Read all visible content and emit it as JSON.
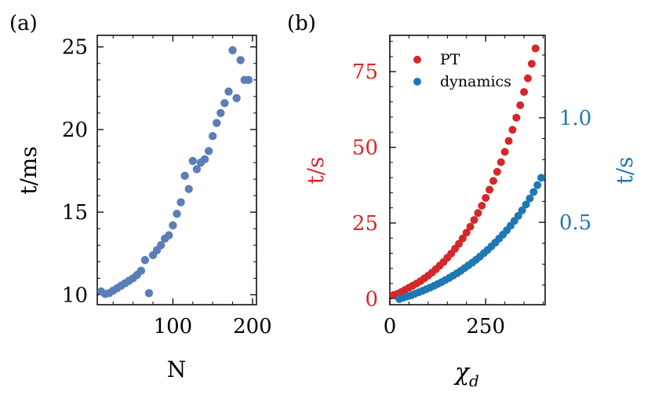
{
  "chart_data": [
    {
      "panel_label": "(a)",
      "type": "scatter",
      "xlabel": "N",
      "ylabel": "t/ms",
      "xlim": [
        5,
        205
      ],
      "ylim": [
        9.4,
        25.7
      ],
      "xticks": [
        100,
        200
      ],
      "yticks": [
        10,
        15,
        20,
        25
      ],
      "grid": false,
      "color": "#5B7DB8",
      "series": [
        {
          "x": [
            10,
            15,
            20,
            25,
            30,
            35,
            40,
            45,
            50,
            55,
            60,
            65,
            70,
            75,
            80,
            85,
            90,
            95,
            100,
            105,
            110,
            115,
            120,
            125,
            130,
            135,
            140,
            145,
            150,
            155,
            160,
            165,
            170,
            175,
            180,
            185,
            190,
            195
          ],
          "y": [
            10.2,
            10.05,
            10.1,
            10.25,
            10.4,
            10.55,
            10.7,
            10.85,
            11.0,
            11.2,
            11.45,
            12.1,
            10.1,
            12.4,
            12.7,
            13.0,
            13.4,
            13.6,
            14.2,
            14.9,
            15.6,
            17.2,
            16.4,
            18.1,
            17.6,
            18.0,
            18.2,
            18.7,
            19.6,
            20.4,
            21.0,
            21.6,
            22.3,
            24.8,
            21.9,
            24.2,
            23.0,
            23.0
          ]
        }
      ]
    },
    {
      "panel_label": "(b)",
      "type": "scatter",
      "xlabel": "χd",
      "ylabel_left": "t/s",
      "ylabel_right": "t/s",
      "xlim": [
        0,
        405
      ],
      "xticks": [
        0,
        250
      ],
      "ylim_left": [
        -2,
        87
      ],
      "yticks_left": [
        0,
        25,
        50,
        75
      ],
      "ylim_right": [
        0.106,
        1.394
      ],
      "yticks_right": [
        0.5,
        1.0
      ],
      "legend": "top-left",
      "grid": false,
      "series": [
        {
          "name": "PT",
          "axis": "left",
          "color": "#D62728",
          "x": [
            10,
            20,
            30,
            40,
            50,
            60,
            70,
            80,
            90,
            100,
            110,
            120,
            130,
            140,
            150,
            160,
            170,
            180,
            190,
            200,
            210,
            220,
            230,
            240,
            250,
            260,
            270,
            280,
            290,
            300,
            310,
            320,
            330,
            340,
            350,
            360,
            370,
            380
          ],
          "y": [
            1.2,
            1.6,
            2.2,
            2.9,
            3.6,
            4.3,
            5.0,
            5.8,
            6.7,
            7.6,
            8.6,
            9.7,
            10.9,
            12.1,
            13.5,
            14.9,
            16.5,
            18.1,
            19.9,
            21.8,
            23.8,
            26.0,
            28.3,
            30.7,
            33.3,
            36.0,
            38.9,
            41.9,
            45.1,
            48.5,
            52.1,
            55.8,
            59.8,
            63.9,
            68.3,
            72.8,
            77.6,
            82.7
          ]
        },
        {
          "name": "dynamics",
          "axis": "right",
          "color": "#1F77B4",
          "x": [
            25,
            35,
            45,
            55,
            65,
            75,
            85,
            95,
            105,
            115,
            125,
            135,
            145,
            155,
            165,
            175,
            185,
            195,
            205,
            215,
            225,
            235,
            245,
            255,
            265,
            275,
            285,
            295,
            305,
            315,
            325,
            335,
            345,
            355,
            365,
            375,
            385,
            395
          ],
          "y": [
            0.133,
            0.14,
            0.145,
            0.15,
            0.158,
            0.165,
            0.172,
            0.18,
            0.188,
            0.196,
            0.205,
            0.214,
            0.224,
            0.234,
            0.245,
            0.256,
            0.268,
            0.281,
            0.294,
            0.307,
            0.321,
            0.336,
            0.352,
            0.368,
            0.385,
            0.403,
            0.422,
            0.441,
            0.462,
            0.484,
            0.507,
            0.531,
            0.557,
            0.585,
            0.614,
            0.645,
            0.678,
            0.713
          ]
        }
      ]
    }
  ]
}
